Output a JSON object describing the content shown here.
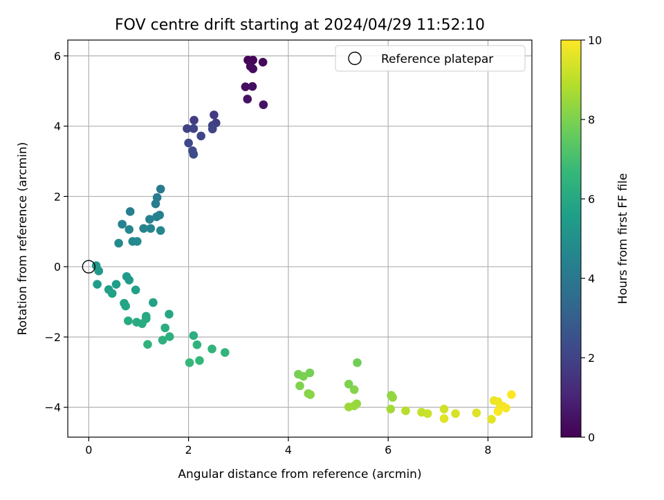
{
  "chart_data": {
    "type": "scatter",
    "title": "FOV centre drift starting at 2024/04/29 11:52:10",
    "xlabel": "Angular distance from reference (arcmin)",
    "ylabel": "Rotation from reference (arcmin)",
    "xlim": [
      -0.42,
      8.88
    ],
    "ylim": [
      -4.85,
      6.45
    ],
    "xticks": [
      0,
      2,
      4,
      6,
      8
    ],
    "yticks": [
      -4,
      -2,
      0,
      2,
      4,
      6
    ],
    "grid": true,
    "legend": {
      "position": "upper-right",
      "entries": [
        "Reference platepar"
      ]
    },
    "reference_point": {
      "x": 0,
      "y": 0,
      "label": "Reference platepar"
    },
    "colorbar": {
      "label": "Hours from first FF file",
      "min": 0,
      "max": 10,
      "ticks": [
        0,
        2,
        4,
        6,
        8,
        10
      ],
      "colormap": "viridis"
    },
    "points": [
      {
        "x": 3.19,
        "y": 5.88,
        "h": 0.1
      },
      {
        "x": 3.29,
        "y": 5.88,
        "h": 0.15
      },
      {
        "x": 3.49,
        "y": 5.82,
        "h": 0.2
      },
      {
        "x": 3.24,
        "y": 5.7,
        "h": 0.25
      },
      {
        "x": 3.29,
        "y": 5.63,
        "h": 0.3
      },
      {
        "x": 3.14,
        "y": 5.12,
        "h": 0.35
      },
      {
        "x": 3.28,
        "y": 5.13,
        "h": 0.4
      },
      {
        "x": 3.18,
        "y": 4.77,
        "h": 0.45
      },
      {
        "x": 3.5,
        "y": 4.61,
        "h": 0.5
      },
      {
        "x": 2.51,
        "y": 4.32,
        "h": 1.7
      },
      {
        "x": 2.11,
        "y": 4.17,
        "h": 1.8
      },
      {
        "x": 2.55,
        "y": 4.09,
        "h": 1.85
      },
      {
        "x": 2.48,
        "y": 4.02,
        "h": 1.9
      },
      {
        "x": 1.97,
        "y": 3.93,
        "h": 1.95
      },
      {
        "x": 2.1,
        "y": 3.93,
        "h": 2.0
      },
      {
        "x": 2.48,
        "y": 3.92,
        "h": 2.05
      },
      {
        "x": 2.25,
        "y": 3.72,
        "h": 2.1
      },
      {
        "x": 2.0,
        "y": 3.52,
        "h": 2.2
      },
      {
        "x": 2.08,
        "y": 3.3,
        "h": 2.3
      },
      {
        "x": 2.1,
        "y": 3.2,
        "h": 2.35
      },
      {
        "x": 1.44,
        "y": 2.21,
        "h": 4.1
      },
      {
        "x": 1.37,
        "y": 1.97,
        "h": 4.15
      },
      {
        "x": 1.34,
        "y": 1.79,
        "h": 4.2
      },
      {
        "x": 0.83,
        "y": 1.57,
        "h": 4.25
      },
      {
        "x": 1.42,
        "y": 1.47,
        "h": 4.3
      },
      {
        "x": 1.36,
        "y": 1.42,
        "h": 4.35
      },
      {
        "x": 1.22,
        "y": 1.35,
        "h": 4.4
      },
      {
        "x": 0.67,
        "y": 1.21,
        "h": 4.45
      },
      {
        "x": 1.1,
        "y": 1.09,
        "h": 4.5
      },
      {
        "x": 1.24,
        "y": 1.09,
        "h": 4.55
      },
      {
        "x": 0.81,
        "y": 1.06,
        "h": 4.6
      },
      {
        "x": 1.44,
        "y": 1.03,
        "h": 4.65
      },
      {
        "x": 0.88,
        "y": 0.72,
        "h": 4.7
      },
      {
        "x": 0.97,
        "y": 0.72,
        "h": 4.75
      },
      {
        "x": 0.6,
        "y": 0.67,
        "h": 4.8
      },
      {
        "x": 0.15,
        "y": 0.03,
        "h": 5.3
      },
      {
        "x": 0.2,
        "y": -0.12,
        "h": 5.35
      },
      {
        "x": 0.76,
        "y": -0.28,
        "h": 5.4
      },
      {
        "x": 0.81,
        "y": -0.38,
        "h": 5.45
      },
      {
        "x": 0.17,
        "y": -0.5,
        "h": 5.5
      },
      {
        "x": 0.55,
        "y": -0.5,
        "h": 5.55
      },
      {
        "x": 0.4,
        "y": -0.65,
        "h": 5.6
      },
      {
        "x": 0.94,
        "y": -0.66,
        "h": 5.65
      },
      {
        "x": 0.47,
        "y": -0.76,
        "h": 5.7
      },
      {
        "x": 1.29,
        "y": -1.02,
        "h": 5.75
      },
      {
        "x": 0.71,
        "y": -1.04,
        "h": 5.8
      },
      {
        "x": 0.74,
        "y": -1.12,
        "h": 5.85
      },
      {
        "x": 1.61,
        "y": -1.35,
        "h": 5.9
      },
      {
        "x": 1.15,
        "y": -1.41,
        "h": 5.95
      },
      {
        "x": 1.15,
        "y": -1.48,
        "h": 6.0
      },
      {
        "x": 0.79,
        "y": -1.54,
        "h": 6.05
      },
      {
        "x": 0.96,
        "y": -1.58,
        "h": 6.1
      },
      {
        "x": 1.07,
        "y": -1.62,
        "h": 6.15
      },
      {
        "x": 1.53,
        "y": -1.74,
        "h": 6.2
      },
      {
        "x": 2.1,
        "y": -1.96,
        "h": 6.25
      },
      {
        "x": 1.62,
        "y": -1.99,
        "h": 6.3
      },
      {
        "x": 1.48,
        "y": -2.09,
        "h": 6.35
      },
      {
        "x": 1.18,
        "y": -2.21,
        "h": 6.4
      },
      {
        "x": 2.17,
        "y": -2.22,
        "h": 6.45
      },
      {
        "x": 2.47,
        "y": -2.34,
        "h": 6.5
      },
      {
        "x": 2.73,
        "y": -2.44,
        "h": 6.55
      },
      {
        "x": 2.22,
        "y": -2.67,
        "h": 6.6
      },
      {
        "x": 2.02,
        "y": -2.73,
        "h": 6.65
      },
      {
        "x": 5.38,
        "y": -2.73,
        "h": 7.8
      },
      {
        "x": 4.43,
        "y": -3.02,
        "h": 7.85
      },
      {
        "x": 4.2,
        "y": -3.06,
        "h": 7.9
      },
      {
        "x": 4.3,
        "y": -3.12,
        "h": 7.95
      },
      {
        "x": 5.21,
        "y": -3.34,
        "h": 8.0
      },
      {
        "x": 4.23,
        "y": -3.39,
        "h": 8.05
      },
      {
        "x": 5.32,
        "y": -3.5,
        "h": 8.1
      },
      {
        "x": 4.4,
        "y": -3.61,
        "h": 8.15
      },
      {
        "x": 4.44,
        "y": -3.64,
        "h": 8.2
      },
      {
        "x": 6.06,
        "y": -3.66,
        "h": 8.3
      },
      {
        "x": 6.09,
        "y": -3.72,
        "h": 8.35
      },
      {
        "x": 5.37,
        "y": -3.9,
        "h": 8.4
      },
      {
        "x": 5.32,
        "y": -3.96,
        "h": 8.45
      },
      {
        "x": 5.21,
        "y": -3.99,
        "h": 8.5
      },
      {
        "x": 6.05,
        "y": -4.05,
        "h": 8.6
      },
      {
        "x": 6.35,
        "y": -4.1,
        "h": 8.9
      },
      {
        "x": 6.67,
        "y": -4.14,
        "h": 9.1
      },
      {
        "x": 6.79,
        "y": -4.18,
        "h": 9.2
      },
      {
        "x": 7.12,
        "y": -4.05,
        "h": 9.3
      },
      {
        "x": 7.35,
        "y": -4.18,
        "h": 9.4
      },
      {
        "x": 7.77,
        "y": -4.16,
        "h": 9.5
      },
      {
        "x": 7.12,
        "y": -4.32,
        "h": 9.55
      },
      {
        "x": 8.07,
        "y": -4.34,
        "h": 9.6
      },
      {
        "x": 8.12,
        "y": -3.81,
        "h": 9.7
      },
      {
        "x": 8.2,
        "y": -3.84,
        "h": 9.75
      },
      {
        "x": 8.3,
        "y": -3.97,
        "h": 9.8
      },
      {
        "x": 8.25,
        "y": -3.98,
        "h": 9.85
      },
      {
        "x": 8.36,
        "y": -4.02,
        "h": 9.9
      },
      {
        "x": 8.2,
        "y": -4.12,
        "h": 9.95
      },
      {
        "x": 8.47,
        "y": -3.64,
        "h": 10.0
      }
    ]
  }
}
